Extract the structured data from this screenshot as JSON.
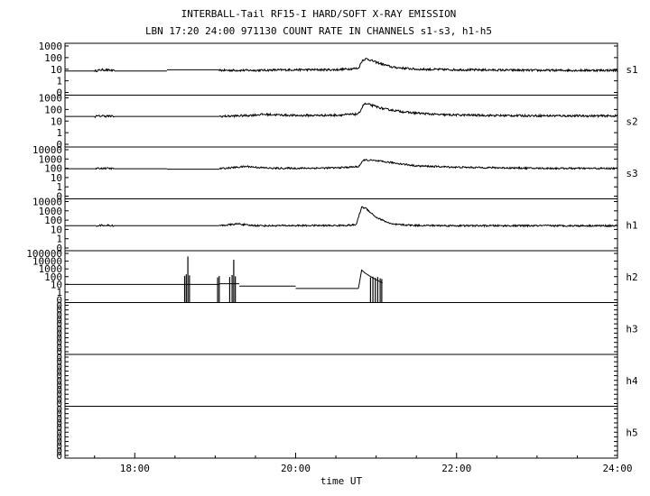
{
  "title_line1": "INTERBALL-Tail RF15-I HARD/SOFT X-RAY EMISSION",
  "title_line2": "LBN 17:20 24:00 971130  COUNT RATE IN CHANNELS s1-s3, h1-h5",
  "chart_data": {
    "type": "line",
    "xlabel": "time UT",
    "xlim": [
      17.133,
      24.0
    ],
    "x_ticks": [
      18,
      20,
      22,
      24
    ],
    "x_tick_labels": [
      "18:00",
      "20:00",
      "22:00",
      "24:00"
    ],
    "yscale": "log",
    "grid": false,
    "panels": [
      {
        "name": "s1",
        "y_tick_labels": [
          "1000",
          "100",
          "10",
          "1",
          "0"
        ],
        "segments": [
          {
            "x": [
              17.5,
              17.55,
              17.6,
              17.7,
              17.75
            ],
            "y": [
              7,
              8,
              9,
              8,
              7
            ],
            "noise": true
          },
          {
            "x": [
              17.133,
              17.5
            ],
            "y": [
              7,
              7
            ]
          },
          {
            "x": [
              17.75,
              18.4
            ],
            "y": [
              7,
              7
            ]
          },
          {
            "x": [
              18.4,
              19.05
            ],
            "y": [
              9,
              9
            ]
          },
          {
            "x": [
              19.05,
              19.5,
              20.0,
              20.5,
              20.78,
              20.83,
              20.88,
              21.0,
              21.2,
              21.5,
              22.0,
              23.0,
              24.0
            ],
            "y": [
              8,
              8,
              9,
              9,
              12,
              60,
              80,
              40,
              15,
              10,
              9,
              8,
              8
            ],
            "noise": true
          }
        ]
      },
      {
        "name": "s2",
        "y_tick_labels": [
          "1000",
          "100",
          "10",
          "1",
          "0"
        ],
        "segments": [
          {
            "x": [
              17.5,
              17.6,
              17.7,
              17.75
            ],
            "y": [
              25,
              28,
              26,
              25
            ],
            "noise": true
          },
          {
            "x": [
              17.133,
              17.5
            ],
            "y": [
              25,
              25
            ]
          },
          {
            "x": [
              17.75,
              19.05
            ],
            "y": [
              25,
              25
            ]
          },
          {
            "x": [
              19.05,
              19.4,
              19.6,
              20.0,
              20.5,
              20.78,
              20.85,
              20.9,
              21.1,
              21.4,
              21.8,
              22.5,
              23.5,
              24.0
            ],
            "y": [
              25,
              30,
              38,
              30,
              32,
              40,
              300,
              280,
              110,
              55,
              35,
              30,
              28,
              28
            ],
            "noise": true
          }
        ]
      },
      {
        "name": "s3",
        "y_tick_labels": [
          "10000",
          "1000",
          "100",
          "10",
          "1",
          "0"
        ],
        "segments": [
          {
            "x": [
              17.5,
              17.6,
              17.7,
              17.75
            ],
            "y": [
              90,
              100,
              95,
              90
            ],
            "noise": true
          },
          {
            "x": [
              17.133,
              17.5
            ],
            "y": [
              90,
              90
            ]
          },
          {
            "x": [
              17.75,
              18.4
            ],
            "y": [
              90,
              90
            ]
          },
          {
            "x": [
              18.4,
              19.05
            ],
            "y": [
              80,
              80
            ]
          },
          {
            "x": [
              19.05,
              19.4,
              19.5,
              19.7,
              20.0,
              20.5,
              20.78,
              20.85,
              20.95,
              21.2,
              21.5,
              22.0,
              23.0,
              24.0
            ],
            "y": [
              90,
              160,
              130,
              100,
              100,
              110,
              150,
              800,
              700,
              400,
              180,
              130,
              100,
              95
            ],
            "noise": true
          }
        ]
      },
      {
        "name": "h1",
        "y_tick_labels": [
          "10000",
          "1000",
          "100",
          "10",
          "1",
          "0"
        ],
        "segments": [
          {
            "x": [
              17.5,
              17.6,
              17.7,
              17.75
            ],
            "y": [
              25,
              28,
              26,
              25
            ],
            "noise": true
          },
          {
            "x": [
              17.133,
              17.5
            ],
            "y": [
              25,
              25
            ]
          },
          {
            "x": [
              17.75,
              19.05
            ],
            "y": [
              25,
              25
            ]
          },
          {
            "x": [
              19.05,
              19.3,
              19.4,
              19.6,
              20.0,
              20.5,
              20.75,
              20.82,
              20.87,
              21.0,
              21.2,
              21.5,
              22.0,
              24.0
            ],
            "y": [
              25,
              40,
              28,
              25,
              26,
              26,
              30,
              2500,
              2000,
              200,
              35,
              27,
              25,
              25
            ],
            "noise": true
          }
        ]
      },
      {
        "name": "h2",
        "y_tick_labels": [
          "100000",
          "10000",
          "1000",
          "100",
          "10",
          "1",
          "0"
        ],
        "segments": [
          {
            "x": [
              17.133,
              19.05
            ],
            "y": [
              10,
              10
            ]
          },
          {
            "x": [
              19.05,
              19.3
            ],
            "y": [
              12,
              12
            ]
          },
          {
            "x": [
              19.3,
              20.0
            ],
            "y": [
              6,
              6
            ]
          },
          {
            "x": [
              20.0,
              20.78
            ],
            "y": [
              3,
              3
            ]
          },
          {
            "x": [
              20.78,
              20.82,
              20.86,
              20.92,
              21.0,
              21.08
            ],
            "y": [
              3,
              700,
              300,
              120,
              40,
              15
            ]
          }
        ],
        "spikes": [
          {
            "x": 18.62,
            "y": 120
          },
          {
            "x": 18.64,
            "y": 200
          },
          {
            "x": 18.66,
            "y": 40000
          },
          {
            "x": 18.68,
            "y": 150
          },
          {
            "x": 19.03,
            "y": 80
          },
          {
            "x": 19.05,
            "y": 120
          },
          {
            "x": 19.18,
            "y": 90
          },
          {
            "x": 19.21,
            "y": 160
          },
          {
            "x": 19.23,
            "y": 15000
          },
          {
            "x": 19.25,
            "y": 110
          },
          {
            "x": 20.93,
            "y": 80
          },
          {
            "x": 20.96,
            "y": 100
          },
          {
            "x": 20.99,
            "y": 70
          },
          {
            "x": 21.02,
            "y": 90
          },
          {
            "x": 21.05,
            "y": 60
          },
          {
            "x": 21.07,
            "y": 50
          }
        ]
      },
      {
        "name": "h3",
        "y_tick_labels": [
          "0",
          "0",
          "0",
          "0",
          "0",
          "0",
          "0",
          "0",
          "0",
          "0",
          "0"
        ],
        "segments": []
      },
      {
        "name": "h4",
        "y_tick_labels": [
          "0",
          "0",
          "0",
          "0",
          "0",
          "0",
          "0",
          "0",
          "0",
          "0",
          "0"
        ],
        "segments": []
      },
      {
        "name": "h5",
        "y_tick_labels": [
          "0",
          "0",
          "0",
          "0",
          "0",
          "0",
          "0",
          "0",
          "0",
          "0",
          "0"
        ],
        "segments": []
      }
    ]
  }
}
